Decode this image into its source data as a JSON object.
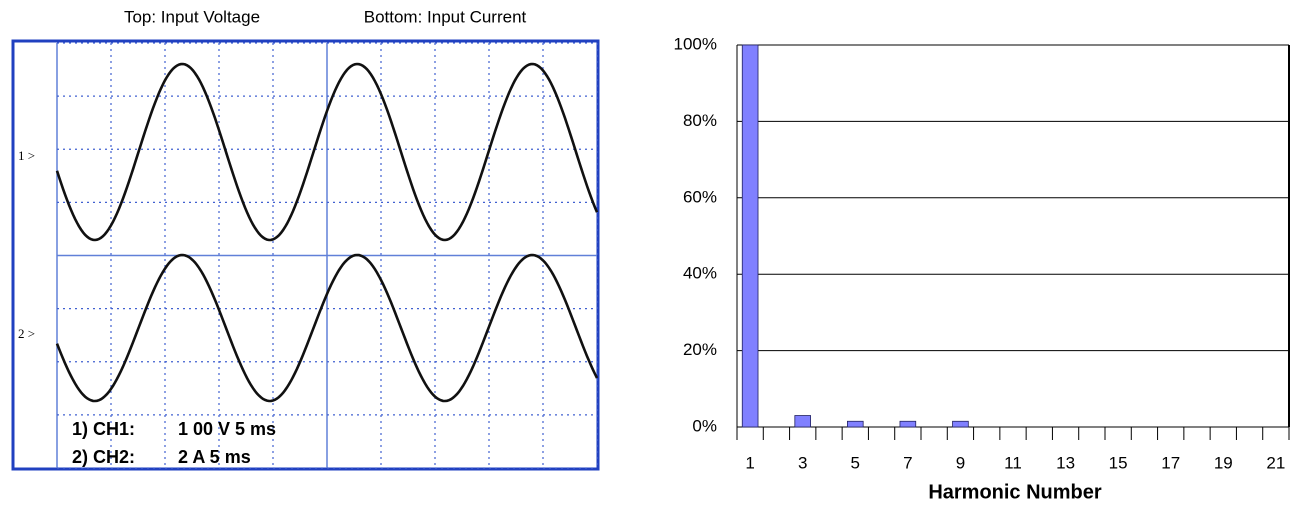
{
  "scope": {
    "top_caption": "Top: Input Voltage",
    "bottom_caption": "Bottom: Input Current",
    "ch1_marker": "1 >",
    "ch2_marker": "2 >",
    "ch1_label": "1) CH1:",
    "ch1_setting": "1 00 V  5 ms",
    "ch2_label": "2) CH2:",
    "ch2_setting": "2 A  5 ms"
  },
  "chart_data": {
    "type": "bar",
    "x_label": "Harmonic Number",
    "categories": [
      "1",
      null,
      "3",
      null,
      "5",
      null,
      "7",
      null,
      "9",
      null,
      "11",
      null,
      "13",
      null,
      "15",
      null,
      "17",
      null,
      "19",
      null,
      "21"
    ],
    "values": [
      100,
      0,
      3,
      0,
      1.5,
      0,
      1.5,
      0,
      1.5,
      0,
      0,
      0,
      0,
      0,
      0,
      0,
      0,
      0,
      0,
      0,
      0
    ],
    "color": "#8080ff",
    "ylim": [
      0,
      100
    ],
    "yticks": [
      {
        "value": 0,
        "label": "0%"
      },
      {
        "value": 20,
        "label": "20%"
      },
      {
        "value": 40,
        "label": "40%"
      },
      {
        "value": 60,
        "label": "60%"
      },
      {
        "value": 80,
        "label": "80%"
      },
      {
        "value": 100,
        "label": "100%"
      }
    ],
    "grid": true
  }
}
